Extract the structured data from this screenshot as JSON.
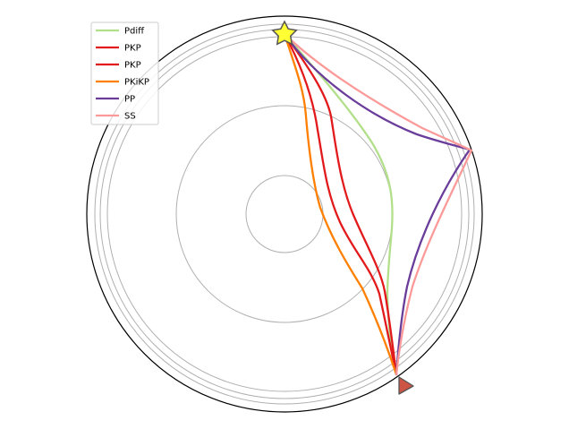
{
  "plot": {
    "title": "",
    "type": "seismic ray path diagram (polar, Earth cross-section)",
    "boundaries": [
      "surface",
      "upper-mantle discontinuity",
      "upper-mantle discontinuity",
      "upper-mantle discontinuity",
      "core-mantle boundary",
      "inner-core boundary"
    ],
    "colors": {
      "surface": "#000000",
      "discontinuity": "#b0b0b0",
      "source_fill": "#ffff33",
      "source_edge": "#555555",
      "station_fill": "#cc5544",
      "station_edge": "#555555"
    },
    "source_icon": "star-icon",
    "station_icon": "triangle-icon"
  },
  "legend": {
    "placement": "upper-left",
    "entries": [
      {
        "label": "Pdiff",
        "color": "#b2df8a"
      },
      {
        "label": "PKP",
        "color": "#e31a1c"
      },
      {
        "label": "PKP",
        "color": "#e31a1c"
      },
      {
        "label": "PKiKP",
        "color": "#ff7f00"
      },
      {
        "label": "PP",
        "color": "#6a3d9a"
      },
      {
        "label": "SS",
        "color": "#fb9a99"
      }
    ]
  }
}
